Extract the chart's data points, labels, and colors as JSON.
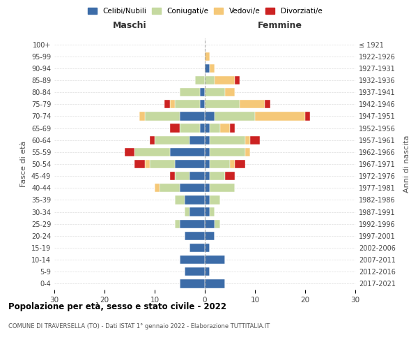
{
  "age_groups": [
    "0-4",
    "5-9",
    "10-14",
    "15-19",
    "20-24",
    "25-29",
    "30-34",
    "35-39",
    "40-44",
    "45-49",
    "50-54",
    "55-59",
    "60-64",
    "65-69",
    "70-74",
    "75-79",
    "80-84",
    "85-89",
    "90-94",
    "95-99",
    "100+"
  ],
  "birth_years": [
    "2017-2021",
    "2012-2016",
    "2007-2011",
    "2002-2006",
    "1997-2001",
    "1992-1996",
    "1987-1991",
    "1982-1986",
    "1977-1981",
    "1972-1976",
    "1967-1971",
    "1962-1966",
    "1957-1961",
    "1952-1956",
    "1947-1951",
    "1942-1946",
    "1937-1941",
    "1932-1936",
    "1927-1931",
    "1922-1926",
    "≤ 1921"
  ],
  "males": {
    "celibi": [
      5,
      4,
      5,
      3,
      4,
      5,
      3,
      4,
      5,
      3,
      6,
      7,
      3,
      1,
      5,
      1,
      1,
      0,
      0,
      0,
      0
    ],
    "coniugati": [
      0,
      0,
      0,
      0,
      0,
      1,
      1,
      2,
      4,
      3,
      5,
      7,
      7,
      4,
      7,
      5,
      4,
      2,
      0,
      0,
      0
    ],
    "vedovi": [
      0,
      0,
      0,
      0,
      0,
      0,
      0,
      0,
      1,
      0,
      1,
      0,
      0,
      0,
      1,
      1,
      0,
      0,
      0,
      0,
      0
    ],
    "divorziati": [
      0,
      0,
      0,
      0,
      0,
      0,
      0,
      0,
      0,
      1,
      2,
      2,
      1,
      2,
      0,
      1,
      0,
      0,
      0,
      0,
      0
    ]
  },
  "females": {
    "nubili": [
      4,
      1,
      4,
      1,
      2,
      2,
      1,
      1,
      1,
      1,
      1,
      1,
      1,
      1,
      2,
      0,
      0,
      0,
      1,
      0,
      0
    ],
    "coniugate": [
      0,
      0,
      0,
      0,
      0,
      1,
      1,
      2,
      5,
      3,
      4,
      7,
      7,
      2,
      8,
      7,
      4,
      2,
      0,
      0,
      0
    ],
    "vedove": [
      0,
      0,
      0,
      0,
      0,
      0,
      0,
      0,
      0,
      0,
      1,
      1,
      1,
      2,
      10,
      5,
      2,
      4,
      1,
      1,
      0
    ],
    "divorziate": [
      0,
      0,
      0,
      0,
      0,
      0,
      0,
      0,
      0,
      2,
      2,
      0,
      2,
      1,
      1,
      1,
      0,
      1,
      0,
      0,
      0
    ]
  },
  "colors": {
    "celibi_nubili": "#3c6ca8",
    "coniugati": "#c5d9a0",
    "vedovi": "#f5c878",
    "divorziati": "#cc2222"
  },
  "xlim": 30,
  "title": "Popolazione per età, sesso e stato civile - 2022",
  "subtitle": "COMUNE DI TRAVERSELLA (TO) - Dati ISTAT 1° gennaio 2022 - Elaborazione TUTTITALIA.IT",
  "ylabel_left": "Fasce di età",
  "ylabel_right": "Anni di nascita",
  "xlabel_left": "Maschi",
  "xlabel_right": "Femmine",
  "legend_labels": [
    "Celibi/Nubili",
    "Coniugati/e",
    "Vedovi/e",
    "Divorziati/e"
  ]
}
